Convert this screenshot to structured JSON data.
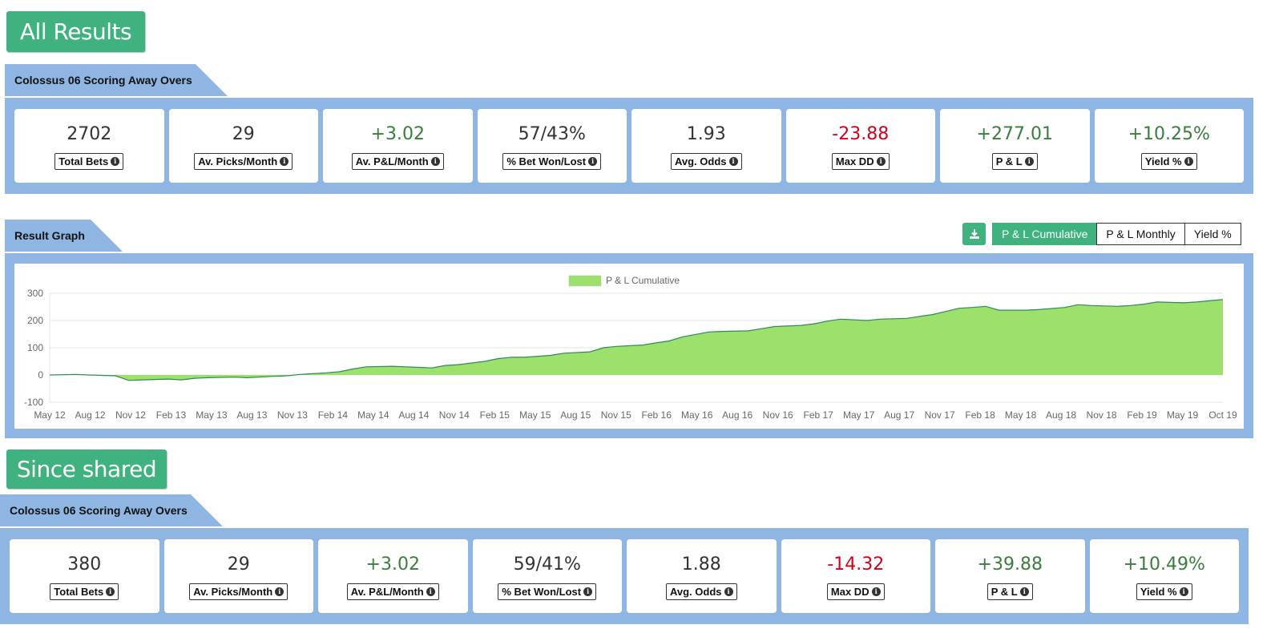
{
  "all_results": {
    "button_label": "All Results",
    "strategy_name": "Colossus 06 Scoring Away Overs",
    "stats": [
      {
        "value": "2702",
        "label": "Total Bets",
        "tone": "neutral"
      },
      {
        "value": "29",
        "label": "Av. Picks/Month",
        "tone": "neutral"
      },
      {
        "value": "+3.02",
        "label": "Av. P&L/Month",
        "tone": "pos"
      },
      {
        "value": "57/43%",
        "label": "% Bet Won/Lost",
        "tone": "neutral"
      },
      {
        "value": "1.93",
        "label": "Avg. Odds",
        "tone": "neutral"
      },
      {
        "value": "-23.88",
        "label": "Max DD",
        "tone": "neg"
      },
      {
        "value": "+277.01",
        "label": "P & L",
        "tone": "pos"
      },
      {
        "value": "+10.25%",
        "label": "Yield %",
        "tone": "pos"
      }
    ]
  },
  "result_graph": {
    "title": "Result Graph",
    "download_icon": "download-icon",
    "tabs": [
      "P & L Cumulative",
      "P & L Monthly",
      "Yield %"
    ],
    "active_tab": 0
  },
  "chart_data": {
    "type": "area",
    "title": "",
    "xlabel": "",
    "ylabel": "",
    "legend": {
      "label": "P & L Cumulative",
      "position": "top-center"
    },
    "ylim": [
      -100,
      300
    ],
    "y_ticks": [
      "300",
      "200",
      "100",
      "0",
      "-100"
    ],
    "x_ticks": [
      "May 12",
      "Aug 12",
      "Nov 12",
      "Feb 13",
      "May 13",
      "Aug 13",
      "Nov 13",
      "Feb 14",
      "May 14",
      "Aug 14",
      "Nov 14",
      "Feb 15",
      "May 15",
      "Aug 15",
      "Nov 15",
      "Feb 16",
      "May 16",
      "Aug 16",
      "Nov 16",
      "Feb 17",
      "May 17",
      "Aug 17",
      "Nov 17",
      "Feb 18",
      "May 18",
      "Aug 18",
      "Nov 18",
      "Feb 19",
      "May 19",
      "Oct 19"
    ],
    "grid": true,
    "fill_color": "#9de06b",
    "line_color": "#2e8b57",
    "series": [
      {
        "name": "P & L Cumulative",
        "x": [
          "May 12",
          "Jul 12",
          "Aug 12",
          "Oct 12",
          "Nov 12",
          "Dec 12",
          "Feb 13",
          "Mar 13",
          "Apr 13",
          "May 13",
          "Jul 13",
          "Aug 13",
          "Oct 13",
          "Nov 13",
          "Dec 13",
          "Feb 14",
          "Mar 14",
          "Apr 14",
          "May 14",
          "Jul 14",
          "Aug 14",
          "Oct 14",
          "Nov 14",
          "Dec 14",
          "Feb 15",
          "Mar 15",
          "Apr 15",
          "May 15",
          "Jul 15",
          "Aug 15",
          "Oct 15",
          "Nov 15",
          "Dec 15",
          "Feb 16",
          "Mar 16",
          "Apr 16",
          "May 16",
          "Jul 16",
          "Aug 16",
          "Oct 16",
          "Nov 16",
          "Dec 16",
          "Feb 17",
          "Mar 17",
          "Apr 17",
          "May 17",
          "Jul 17",
          "Aug 17",
          "Oct 17",
          "Nov 17",
          "Dec 17",
          "Feb 18",
          "Mar 18",
          "Apr 18",
          "May 18",
          "Jul 18",
          "Aug 18",
          "Oct 18",
          "Nov 18",
          "Dec 18",
          "Feb 19",
          "Mar 19",
          "Apr 19",
          "May 19",
          "Jul 19",
          "Aug 19",
          "Oct 19"
        ],
        "values": [
          0,
          2,
          0,
          -3,
          -20,
          -18,
          -15,
          -18,
          -12,
          -10,
          -8,
          -10,
          -5,
          -3,
          2,
          8,
          12,
          22,
          30,
          32,
          30,
          26,
          35,
          38,
          50,
          60,
          65,
          65,
          72,
          80,
          85,
          100,
          105,
          110,
          118,
          125,
          140,
          158,
          160,
          162,
          170,
          178,
          182,
          188,
          198,
          205,
          200,
          205,
          208,
          215,
          222,
          245,
          248,
          252,
          238,
          238,
          240,
          248,
          258,
          255,
          252,
          255,
          260,
          268,
          265,
          268,
          277
        ]
      }
    ]
  },
  "since_shared": {
    "button_label": "Since shared",
    "strategy_name": "Colossus 06 Scoring Away Overs",
    "stats": [
      {
        "value": "380",
        "label": "Total Bets",
        "tone": "neutral"
      },
      {
        "value": "29",
        "label": "Av. Picks/Month",
        "tone": "neutral"
      },
      {
        "value": "+3.02",
        "label": "Av. P&L/Month",
        "tone": "pos"
      },
      {
        "value": "59/41%",
        "label": "% Bet Won/Lost",
        "tone": "neutral"
      },
      {
        "value": "1.88",
        "label": "Avg. Odds",
        "tone": "neutral"
      },
      {
        "value": "-14.32",
        "label": "Max DD",
        "tone": "neg"
      },
      {
        "value": "+39.88",
        "label": "P & L",
        "tone": "pos"
      },
      {
        "value": "+10.49%",
        "label": "Yield %",
        "tone": "pos"
      }
    ]
  }
}
